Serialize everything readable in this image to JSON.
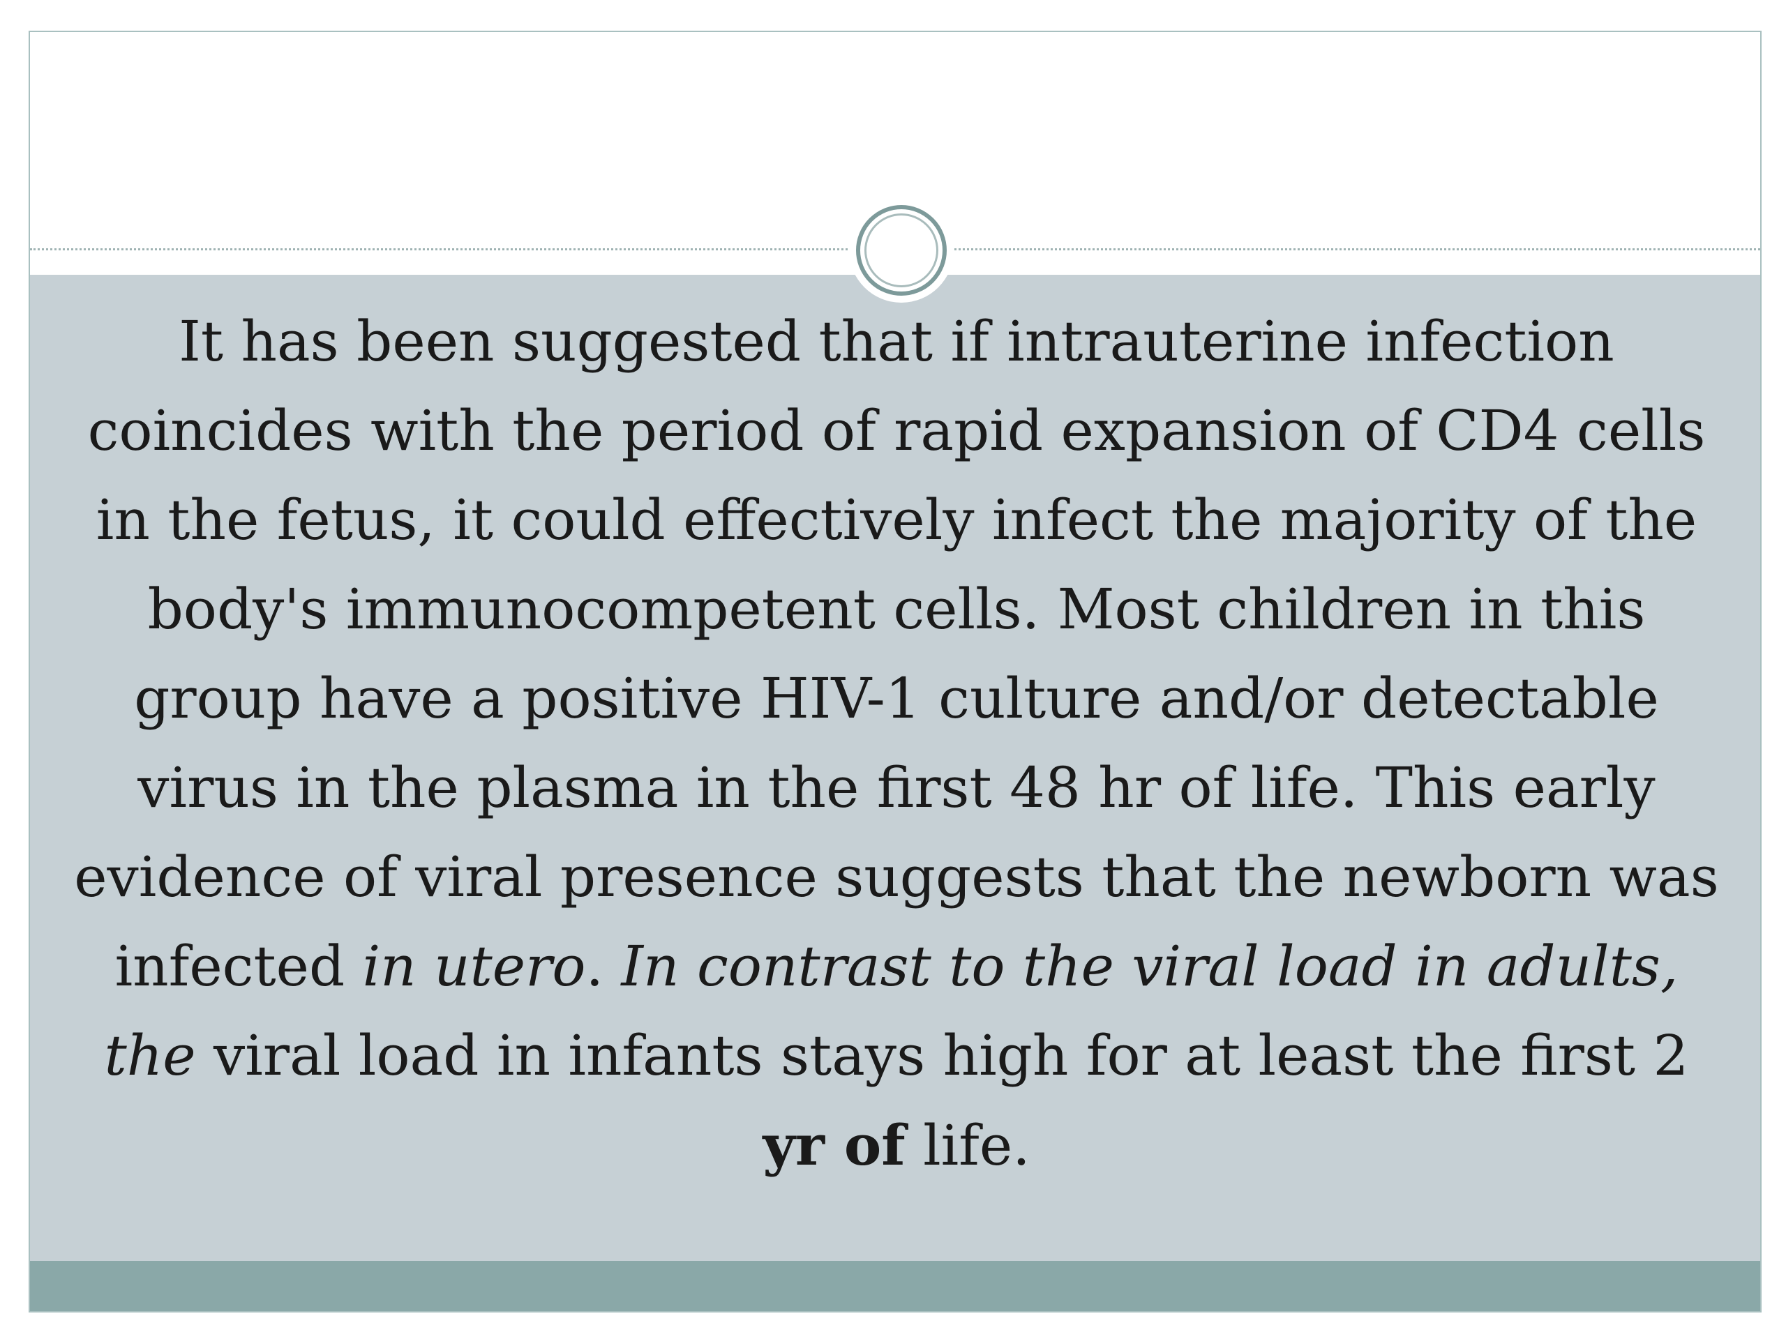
{
  "slide": {
    "paragraph": {
      "part1": "It has been suggested that if intrauterine infection coincides with the period of rapid expansion of CD4 cells in the fetus, it could effectively infect the majority of the body's immunocompetent cells. Most children in this group have a positive HIV-1 culture and/or detectable virus in the plasma in the first 48 hr of life. This early evidence of viral presence suggests that the newborn was infected ",
      "italic1": "in utero",
      "part2": ". ",
      "italic2": "In contrast to the viral load in adults, the",
      "part3": " viral load in infants stays high for at least the first 2 ",
      "bold1": "yr of",
      "part4": " life."
    },
    "colors": {
      "content_background": "#c6d0d5",
      "footer_band": "#8aa8a8",
      "border": "#a9c0c0",
      "circle_ring": "#7d9a9a"
    },
    "decorations": [
      "circle-ornament",
      "dotted-divider"
    ]
  }
}
